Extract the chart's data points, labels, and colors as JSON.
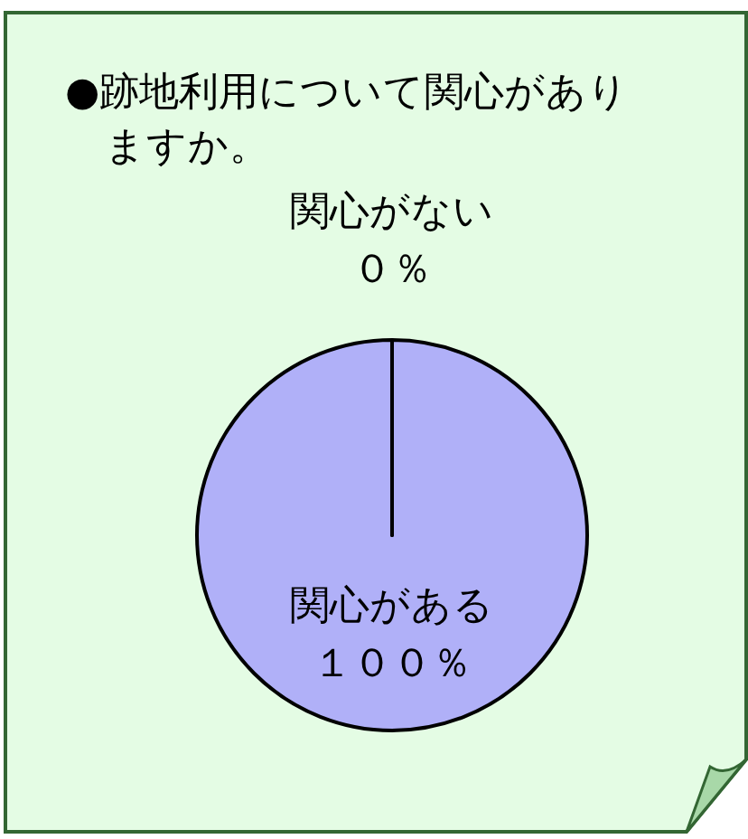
{
  "chart_data": {
    "type": "pie",
    "title": "●跡地利用について関心がありますか。",
    "categories": [
      "関心がある",
      "関心がない"
    ],
    "values": [
      100,
      0
    ],
    "value_labels": [
      "１００％",
      "０％"
    ],
    "colors": [
      "#b0b0f8",
      "#b0b0f8"
    ]
  }
}
